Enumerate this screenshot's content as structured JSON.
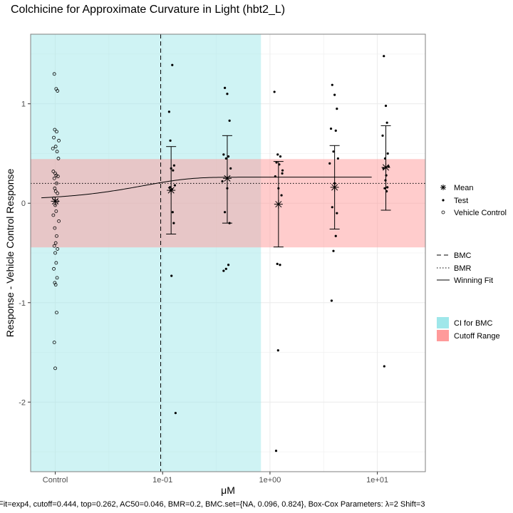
{
  "chart_data": {
    "type": "scatter",
    "title": "Colchicine for Approximate Curvature in Light (hbt2_L)",
    "xlabel": "μM",
    "ylabel": "Response - Vehicle Control Response",
    "caption": "Fit=exp4, cutoff=0.444, top=0.262, AC50=0.046, BMR=0.2, BMC.set={NA, 0.096, 0.824}, Box-Cox Parameters: λ=2 Shift=3",
    "x_scale": "log10",
    "x_ticks": [
      {
        "label": "Control",
        "value": 0.01
      },
      {
        "label": "1e-01",
        "value": 0.1
      },
      {
        "label": "1e+00",
        "value": 1
      },
      {
        "label": "1e+01",
        "value": 10
      }
    ],
    "xlim": [
      0.0059,
      28
    ],
    "ylim": [
      -2.7,
      1.7
    ],
    "y_ticks": [
      -2,
      -1,
      0,
      1
    ],
    "grid": true,
    "bmc": 0.096,
    "bmr": 0.2,
    "cutoff": 0.444,
    "ci_bmc": [
      0.0059,
      0.824
    ],
    "fit": {
      "model": "exp4",
      "top": 0.262,
      "ac50": 0.046,
      "base": 0.03
    },
    "colors": {
      "ci_band": "#9fe7ea",
      "cutoff_band": "#ff9a9a",
      "panel_bg": "#ffffff",
      "points": "#000000",
      "grid": "#ebebeb"
    },
    "series": [
      {
        "name": "Vehicle Control",
        "x": [
          0.0098,
          0.0102,
          0.0105,
          0.0099,
          0.0103,
          0.0097,
          0.0108,
          0.0101,
          0.0095,
          0.0104,
          0.0107,
          0.0096,
          0.01,
          0.0102,
          0.0106,
          0.0098,
          0.0103,
          0.0099,
          0.0101,
          0.0105,
          0.0097,
          0.0104,
          0.01,
          0.0102,
          0.0096,
          0.0108,
          0.0099,
          0.0103,
          0.0101,
          0.0098,
          0.0105,
          0.01,
          0.0102,
          0.0097,
          0.0104,
          0.0099,
          0.0101,
          0.0103,
          0.0098,
          0.01
        ],
        "y": [
          1.3,
          1.15,
          1.13,
          0.74,
          0.72,
          0.66,
          0.63,
          0.57,
          0.55,
          0.52,
          0.45,
          0.32,
          0.3,
          0.28,
          0.27,
          0.25,
          0.2,
          0.15,
          0.12,
          0.1,
          0.05,
          0.02,
          -0.02,
          -0.08,
          -0.12,
          -0.18,
          -0.25,
          -0.33,
          -0.4,
          -0.43,
          -0.46,
          -0.5,
          -0.6,
          -0.66,
          -0.75,
          -0.8,
          -0.82,
          -1.1,
          -1.4,
          -1.66
        ]
      },
      {
        "name": "Test",
        "x": [
          0.115,
          0.123,
          0.118,
          0.128,
          0.12,
          0.125,
          0.13,
          0.117,
          0.122,
          0.119,
          0.124,
          0.127,
          0.121,
          0.132,
          0.38,
          0.4,
          0.42,
          0.37,
          0.41,
          0.39,
          0.43,
          0.36,
          0.4,
          0.38,
          0.42,
          0.41,
          0.39,
          0.37,
          1.1,
          1.18,
          1.25,
          1.15,
          1.22,
          1.3,
          1.12,
          1.2,
          1.28,
          1.17,
          1.24,
          1.19,
          1.14,
          1.31,
          3.8,
          4.0,
          4.2,
          3.7,
          4.1,
          3.9,
          4.3,
          3.6,
          4.0,
          3.8,
          4.2,
          4.1,
          3.9,
          3.75,
          11.5,
          12.0,
          12.3,
          11.2,
          12.5,
          11.8,
          12.7,
          11.4,
          12.1,
          11.9,
          12.4,
          11.7,
          12.2,
          11.6
        ],
        "y": [
          0.92,
          1.39,
          0.63,
          0.38,
          0.35,
          0.33,
          0.18,
          0.16,
          0.14,
          0.13,
          -0.09,
          -0.2,
          -0.73,
          -2.11,
          1.16,
          1.1,
          0.83,
          0.49,
          0.47,
          0.45,
          0.35,
          0.22,
          0.15,
          -0.09,
          -0.2,
          -0.62,
          -0.66,
          -0.68,
          1.12,
          0.49,
          0.47,
          0.41,
          0.39,
          0.3,
          0.27,
          0.15,
          0.08,
          -0.61,
          -0.62,
          -1.48,
          -2.49,
          0.33,
          1.19,
          1.09,
          0.95,
          0.75,
          0.73,
          0.52,
          0.45,
          0.4,
          0.2,
          -0.04,
          -0.1,
          -0.33,
          -0.48,
          -0.98,
          1.48,
          0.98,
          0.81,
          0.68,
          0.5,
          0.45,
          0.37,
          0.35,
          0.28,
          0.23,
          0.16,
          0.15,
          0.12,
          -1.64
        ]
      }
    ],
    "summary": {
      "name": "Mean",
      "x": [
        0.01,
        0.12,
        0.4,
        1.2,
        4.0,
        12.0
      ],
      "mean": [
        0.02,
        0.13,
        0.25,
        -0.01,
        0.16,
        0.36
      ],
      "lower": [
        null,
        -0.31,
        -0.2,
        -0.44,
        -0.26,
        -0.07
      ],
      "upper": [
        null,
        0.57,
        0.68,
        0.42,
        0.58,
        0.78
      ]
    },
    "legend_groups": [
      {
        "placement": "right",
        "entries": [
          {
            "key": "mean",
            "label": "Mean"
          },
          {
            "key": "test",
            "label": "Test"
          },
          {
            "key": "vehicle",
            "label": "Vehicle Control"
          }
        ]
      },
      {
        "placement": "right",
        "entries": [
          {
            "key": "bmc",
            "label": "BMC"
          },
          {
            "key": "bmr",
            "label": "BMR"
          },
          {
            "key": "fit",
            "label": "Winning Fit"
          }
        ]
      },
      {
        "placement": "right",
        "entries": [
          {
            "key": "ci",
            "label": "CI for BMC"
          },
          {
            "key": "cutoff",
            "label": "Cutoff Range"
          }
        ]
      }
    ]
  }
}
